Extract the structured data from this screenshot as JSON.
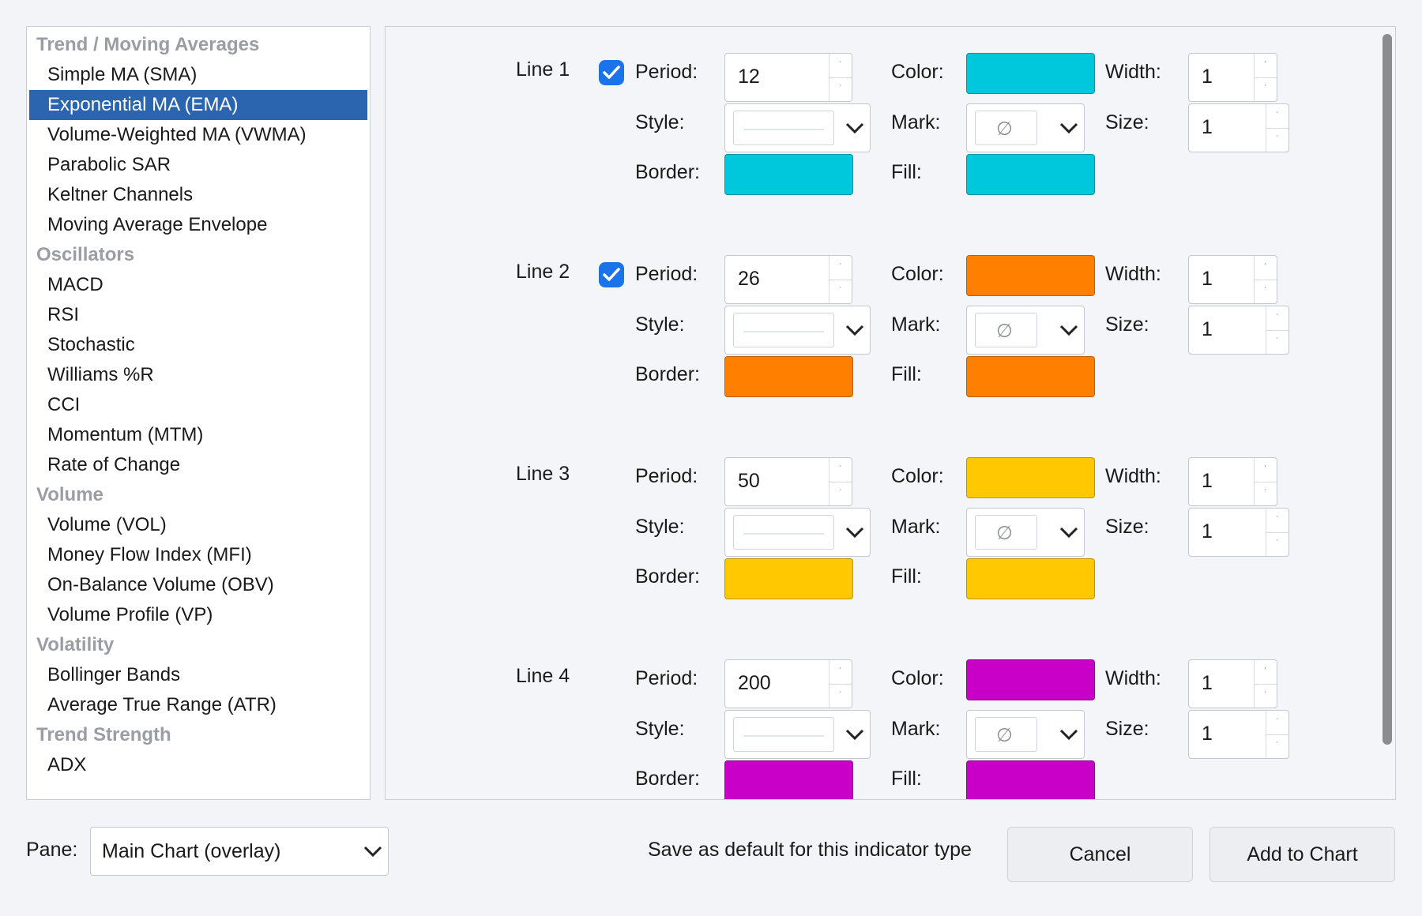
{
  "indicator_list": [
    {
      "type": "group",
      "label": "Trend / Moving Averages"
    },
    {
      "type": "item",
      "label": "Simple MA (SMA)"
    },
    {
      "type": "item",
      "label": "Exponential MA (EMA)",
      "selected": true
    },
    {
      "type": "item",
      "label": "Volume-Weighted MA (VWMA)"
    },
    {
      "type": "item",
      "label": "Parabolic SAR"
    },
    {
      "type": "item",
      "label": "Keltner Channels"
    },
    {
      "type": "item",
      "label": "Moving Average Envelope"
    },
    {
      "type": "group",
      "label": "Oscillators"
    },
    {
      "type": "item",
      "label": "MACD"
    },
    {
      "type": "item",
      "label": "RSI"
    },
    {
      "type": "item",
      "label": "Stochastic"
    },
    {
      "type": "item",
      "label": "Williams %R"
    },
    {
      "type": "item",
      "label": "CCI"
    },
    {
      "type": "item",
      "label": "Momentum (MTM)"
    },
    {
      "type": "item",
      "label": "Rate of Change"
    },
    {
      "type": "group",
      "label": "Volume"
    },
    {
      "type": "item",
      "label": "Volume (VOL)"
    },
    {
      "type": "item",
      "label": "Money Flow Index (MFI)"
    },
    {
      "type": "item",
      "label": "On-Balance Volume (OBV)"
    },
    {
      "type": "item",
      "label": "Volume Profile (VP)"
    },
    {
      "type": "group",
      "label": "Volatility"
    },
    {
      "type": "item",
      "label": "Bollinger Bands"
    },
    {
      "type": "item",
      "label": "Average True Range (ATR)"
    },
    {
      "type": "group",
      "label": "Trend Strength"
    },
    {
      "type": "item",
      "label": "ADX"
    }
  ],
  "labels": {
    "period": "Period:",
    "color": "Color:",
    "width": "Width:",
    "style": "Style:",
    "mark": "Mark:",
    "size": "Size:",
    "border": "Border:",
    "fill": "Fill:"
  },
  "lines": [
    {
      "name": "Line 1",
      "checked": true,
      "period": "12",
      "color": "#00c8dc",
      "width": "1",
      "size": "1",
      "border": "#00c8dc",
      "fill": "#00c8dc"
    },
    {
      "name": "Line 2",
      "checked": true,
      "period": "26",
      "color": "#ff8000",
      "width": "1",
      "size": "1",
      "border": "#ff8000",
      "fill": "#ff8000"
    },
    {
      "name": "Line 3",
      "checked": false,
      "period": "50",
      "color": "#ffc800",
      "width": "1",
      "size": "1",
      "border": "#ffc800",
      "fill": "#ffc800"
    },
    {
      "name": "Line 4",
      "checked": false,
      "period": "200",
      "color": "#c800c8",
      "width": "1",
      "size": "1",
      "border": "#c800c8",
      "fill": "#c800c8"
    }
  ],
  "mark_glyph": "∅",
  "footer": {
    "pane_label": "Pane:",
    "pane_value": "Main Chart (overlay)",
    "save_default_label": "Save as default for this indicator type",
    "cancel_label": "Cancel",
    "add_label": "Add to Chart"
  }
}
